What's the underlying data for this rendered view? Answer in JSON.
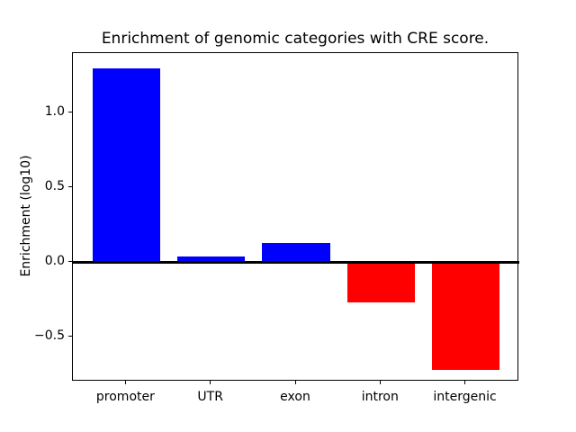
{
  "figure": {
    "background": "#ffffff"
  },
  "chart_data": {
    "type": "bar",
    "title": "Enrichment of genomic categories with CRE score.",
    "xlabel": "",
    "ylabel": "Enrichment (log10)",
    "categories": [
      "promoter",
      "UTR",
      "exon",
      "intron",
      "intergenic"
    ],
    "values": [
      1.3,
      0.04,
      0.13,
      -0.27,
      -0.72
    ],
    "bar_colors": [
      "#0000ff",
      "#0000ff",
      "#0000ff",
      "#ff0000",
      "#ff0000"
    ],
    "positive_color": "#0000ff",
    "negative_color": "#ff0000",
    "bar_width": 0.8,
    "xlim": [
      -0.63,
      4.63
    ],
    "ylim": [
      -0.8,
      1.4
    ],
    "yticks": {
      "values": [
        -0.5,
        0.0,
        0.5,
        1.0
      ],
      "labels": [
        "−0.5",
        "0.0",
        "0.5",
        "1.0"
      ]
    },
    "zero_line": true,
    "grid": false,
    "legend": null,
    "spine_color": "#000000",
    "text_color": "#000000"
  }
}
